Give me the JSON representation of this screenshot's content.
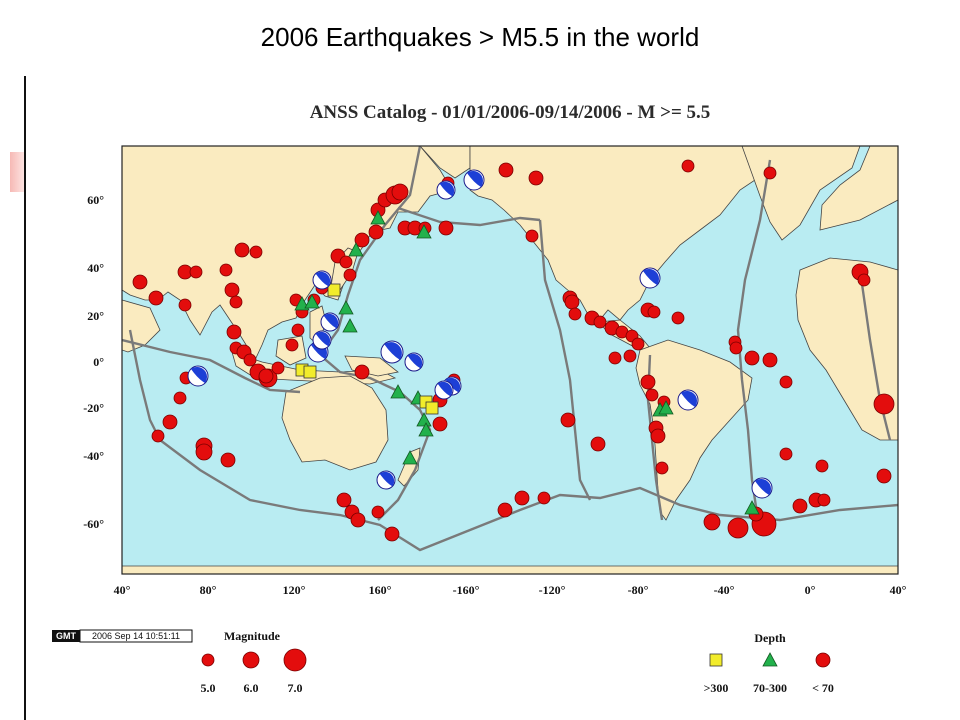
{
  "slide": {
    "title": "2006 Earthquakes > M5.5 in the world"
  },
  "map": {
    "title": "ANSS Catalog - 01/01/2006-09/14/2006 - M >= 5.5",
    "colors": {
      "ocean": "#b9ecf2",
      "land": "#faebc0",
      "quake": "#e30d0d",
      "intermediate": "#22b14c",
      "deep": "#f2ec2b",
      "plate": "#7a7a7a"
    },
    "lat_ticks": [
      "60°",
      "40°",
      "20°",
      "0°",
      "-20°",
      "-40°",
      "-60°"
    ],
    "lon_ticks": [
      "40°",
      "80°",
      "120°",
      "160°",
      "-160°",
      "-120°",
      "-80°",
      "-40°",
      "0°",
      "40°"
    ]
  },
  "legend": {
    "gmt_badge": "GMT",
    "gmt_stamp": "2006 Sep 14 10:51:11",
    "magnitude_title": "Magnitude",
    "magnitude_labels": [
      "5.0",
      "6.0",
      "7.0"
    ],
    "depth_title": "Depth",
    "depth_labels": [
      ">300",
      "70-300",
      "< 70"
    ]
  }
}
